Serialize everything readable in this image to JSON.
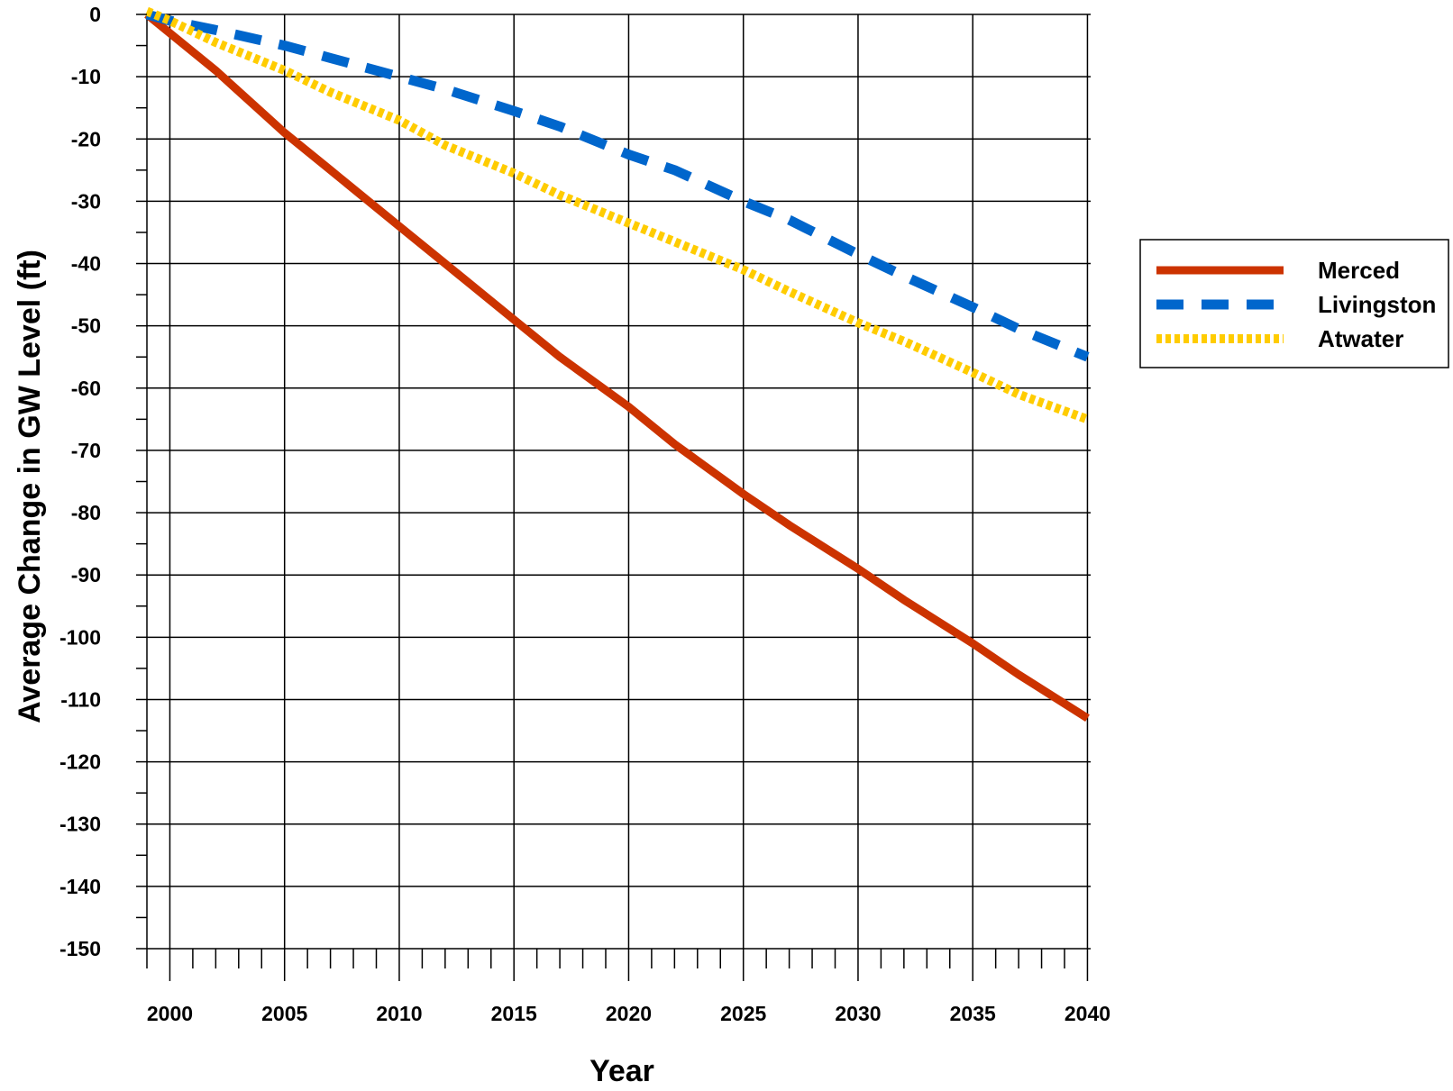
{
  "chart_data": {
    "type": "line",
    "title": "",
    "xlabel": "Year",
    "ylabel": "Average Change in GW Level (ft)",
    "xlim": [
      1999,
      2040
    ],
    "ylim": [
      -150,
      0
    ],
    "x_ticks": [
      2000,
      2005,
      2010,
      2015,
      2020,
      2025,
      2030,
      2035,
      2040
    ],
    "y_ticks": [
      0,
      -10,
      -20,
      -30,
      -40,
      -50,
      -60,
      -70,
      -80,
      -90,
      -100,
      -110,
      -120,
      -130,
      -140,
      -150
    ],
    "grid": true,
    "legend_position": "right",
    "series": [
      {
        "name": "Merced",
        "color": "#cc3300",
        "style": "solid",
        "x": [
          1999,
          2000,
          2002,
          2005,
          2007,
          2010,
          2012,
          2015,
          2017,
          2020,
          2022,
          2025,
          2027,
          2030,
          2032,
          2035,
          2037,
          2040
        ],
        "y": [
          0,
          -3,
          -9,
          -19,
          -25,
          -34,
          -40,
          -49,
          -55,
          -63,
          -69,
          -77,
          -82,
          -89,
          -94,
          -101,
          -106,
          -113
        ]
      },
      {
        "name": "Livingston",
        "color": "#0066cc",
        "style": "dashed",
        "x": [
          1999,
          2000,
          2002,
          2005,
          2007,
          2010,
          2012,
          2015,
          2017,
          2020,
          2022,
          2025,
          2027,
          2030,
          2032,
          2035,
          2037,
          2040
        ],
        "y": [
          0,
          -1,
          -2.5,
          -5,
          -7,
          -10,
          -12,
          -15.5,
          -18,
          -22.5,
          -25,
          -30,
          -33,
          -38.5,
          -42,
          -47,
          -50.5,
          -55
        ]
      },
      {
        "name": "Atwater",
        "color": "#ffcc00",
        "style": "dotted",
        "x": [
          1999,
          2000,
          2002,
          2005,
          2007,
          2010,
          2012,
          2015,
          2017,
          2020,
          2022,
          2025,
          2027,
          2030,
          2032,
          2035,
          2037,
          2040
        ],
        "y": [
          0.5,
          -1,
          -4.5,
          -9,
          -12.5,
          -17,
          -21,
          -25.5,
          -29,
          -33.5,
          -36.5,
          -41,
          -44.5,
          -49.5,
          -52.5,
          -57.5,
          -61,
          -65
        ]
      }
    ]
  }
}
